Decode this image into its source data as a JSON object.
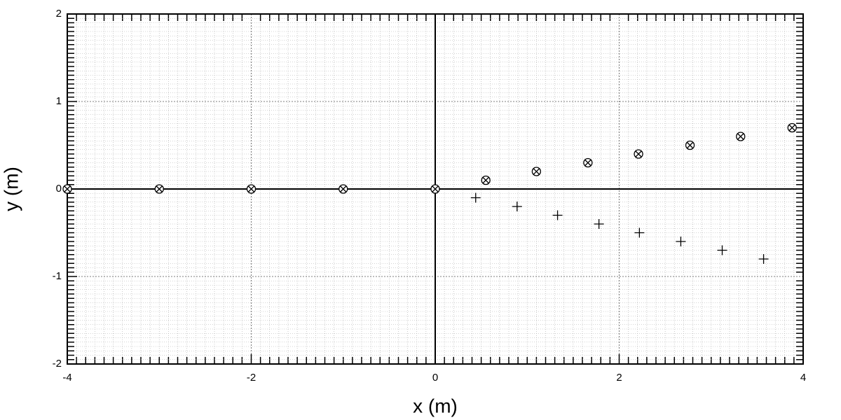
{
  "chart_data": {
    "type": "scatter",
    "xlabel": "x (m)",
    "ylabel": "y (m)",
    "xlim": [
      -4,
      4
    ],
    "ylim": [
      -2,
      2
    ],
    "xticks": [
      -4,
      -2,
      0,
      2,
      4
    ],
    "yticks": [
      -2,
      -1,
      0,
      1,
      2
    ],
    "grid": true,
    "minor_grid": true,
    "zero_lines": true,
    "series": [
      {
        "marker": "circle-x",
        "color": "#000000",
        "x": [
          -4,
          -3,
          -2,
          -1,
          0,
          0.55,
          1.1,
          1.66,
          2.21,
          2.77,
          3.32,
          3.88
        ],
        "values": [
          0,
          0,
          0,
          0,
          0,
          0.1,
          0.2,
          0.3,
          0.4,
          0.5,
          0.6,
          0.7
        ]
      },
      {
        "marker": "plus",
        "color": "#000000",
        "x": [
          0.44,
          0.89,
          1.33,
          1.78,
          2.22,
          2.67,
          3.12,
          3.57
        ],
        "values": [
          -0.1,
          -0.2,
          -0.3,
          -0.4,
          -0.5,
          -0.6,
          -0.7,
          -0.8
        ]
      }
    ]
  }
}
